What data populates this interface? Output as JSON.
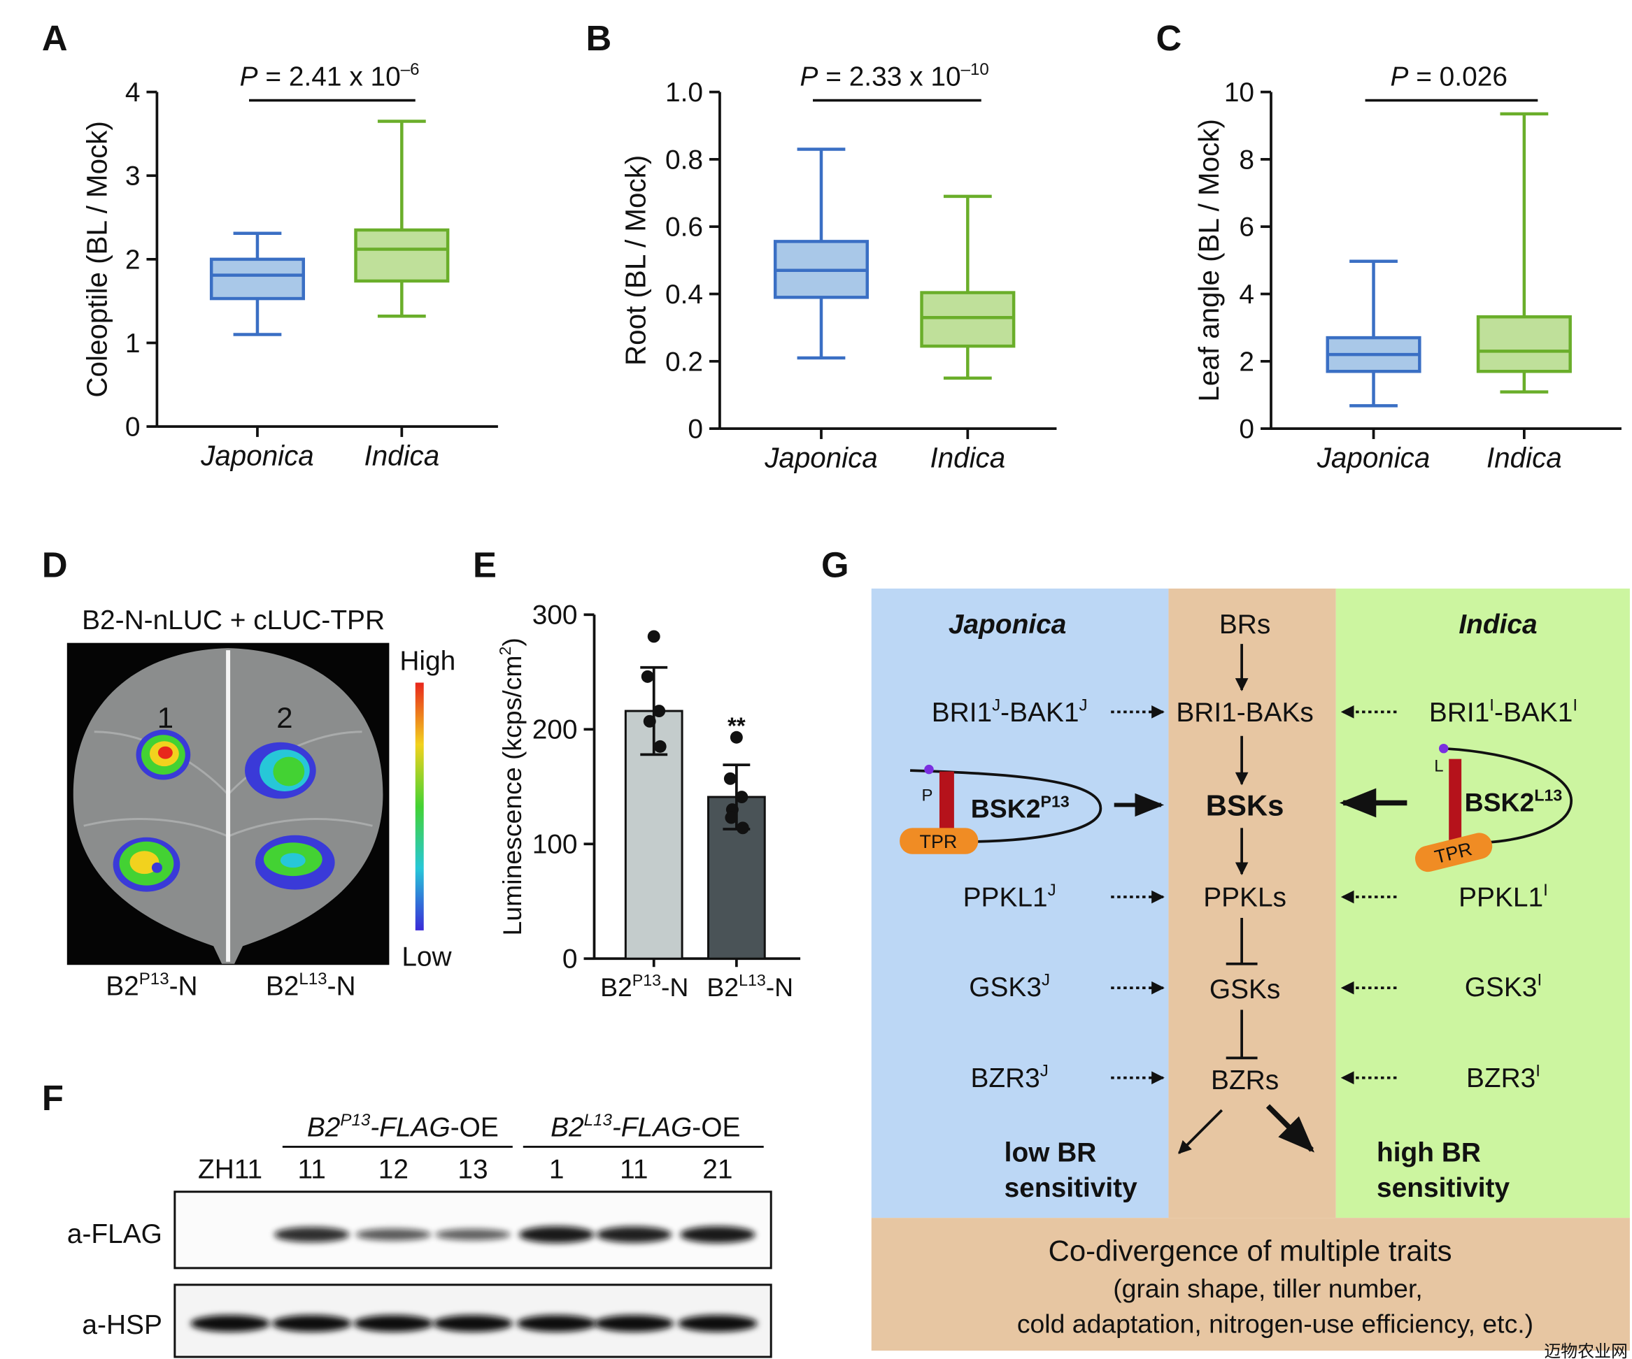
{
  "chart_data": [
    {
      "type": "box",
      "panel": "A",
      "ylabel": "Coleoptile (BL / Mock)",
      "annotation": [
        "P",
        " = 2.41 x 10",
        "–6"
      ],
      "categories": [
        "Japonica",
        "Indica"
      ],
      "colors": [
        "#3a6fc4",
        "#6aae2a"
      ],
      "fills": [
        "#a9c8e8",
        "#bfe09a"
      ],
      "boxes": [
        {
          "whislo": 1.1,
          "q1": 1.53,
          "med": 1.81,
          "q3": 2.0,
          "whishi": 2.31
        },
        {
          "whislo": 1.32,
          "q1": 1.74,
          "med": 2.12,
          "q3": 2.35,
          "whishi": 3.65
        }
      ],
      "ylim": [
        0,
        4
      ],
      "yticks": [
        0,
        1,
        2,
        3,
        4
      ]
    },
    {
      "type": "box",
      "panel": "B",
      "ylabel": "Root (BL / Mock)",
      "annotation": [
        "P",
        " = 2.33 x 10",
        "–10"
      ],
      "categories": [
        "Japonica",
        "Indica"
      ],
      "colors": [
        "#3a6fc4",
        "#6aae2a"
      ],
      "fills": [
        "#a9c8e8",
        "#bfe09a"
      ],
      "boxes": [
        {
          "whislo": 0.21,
          "q1": 0.39,
          "med": 0.47,
          "q3": 0.556,
          "whishi": 0.83
        },
        {
          "whislo": 0.15,
          "q1": 0.245,
          "med": 0.33,
          "q3": 0.404,
          "whishi": 0.69
        }
      ],
      "ylim": [
        0,
        1
      ],
      "yticks": [
        0,
        0.2,
        0.4,
        0.6,
        0.8,
        {
          "value": 1,
          "label": "1.0"
        }
      ]
    },
    {
      "type": "box",
      "panel": "C",
      "ylabel": "Leaf angle (BL / Mock)",
      "annotation": [
        "P",
        " = 0.026"
      ],
      "categories": [
        "Japonica",
        "Indica"
      ],
      "colors": [
        "#3a6fc4",
        "#6aae2a"
      ],
      "fills": [
        "#a9c8e8",
        "#bfe09a"
      ],
      "boxes": [
        {
          "whislo": 0.68,
          "q1": 1.7,
          "med": 2.2,
          "q3": 2.7,
          "whishi": 4.97
        },
        {
          "whislo": 1.09,
          "q1": 1.7,
          "med": 2.3,
          "q3": 3.32,
          "whishi": 9.35
        }
      ],
      "ylim": [
        0,
        10
      ],
      "yticks": [
        0,
        2,
        4,
        6,
        8,
        10
      ]
    },
    {
      "type": "bar",
      "panel": "E",
      "ylabel": [
        "Luminescence (kcps/cm",
        "2",
        ")"
      ],
      "categories": [
        [
          "B2",
          "P13",
          "-N"
        ],
        [
          "B2",
          "L13",
          "-N"
        ]
      ],
      "values": [
        216,
        141
      ],
      "errors": [
        38,
        28
      ],
      "points": [
        [
          281,
          246,
          216,
          207,
          185
        ],
        [
          193,
          157,
          141,
          130,
          114,
          123
        ]
      ],
      "significance": [
        null,
        "**"
      ],
      "colors": [
        "#c4cccc",
        "#4a5357"
      ],
      "ylim": [
        0,
        300
      ],
      "yticks": [
        0,
        100,
        200,
        300
      ]
    }
  ],
  "panel_d": {
    "panel": "D",
    "title": "B2-N-nLUC + cLUC-TPR",
    "scale_high": "High",
    "scale_low": "Low",
    "spot_labels": [
      "1",
      "2"
    ],
    "labels": [
      [
        "B2",
        "P13",
        "-N"
      ],
      [
        "B2",
        "L13",
        "-N"
      ]
    ]
  },
  "panel_f": {
    "panel": "F",
    "groups": [
      [
        "B2",
        "P13",
        "-FLAG",
        "-OE"
      ],
      [
        "B2",
        "L13",
        "-FLAG",
        "-OE"
      ]
    ],
    "lanes": [
      "ZH11",
      "11",
      "12",
      "13",
      "1",
      "11",
      "21"
    ],
    "rows": [
      "a-FLAG",
      "a-HSP"
    ]
  },
  "panel_g": {
    "panel": "G",
    "japonica": {
      "title": "Japonica",
      "items": [
        [
          "BRI1",
          "J",
          "-BAK1",
          "J"
        ],
        [
          "PPKL1",
          "J"
        ],
        [
          "GSK3",
          "J"
        ],
        [
          "BZR3",
          "J"
        ]
      ],
      "bsk": [
        "BSK2",
        "P13"
      ],
      "residue": "P",
      "tpr": "TPR",
      "outcome": [
        "low BR",
        "sensitivity"
      ]
    },
    "indica": {
      "title": "Indica",
      "items": [
        [
          "BRI1",
          "I",
          "-BAK1",
          "I"
        ],
        [
          "PPKL1",
          "I"
        ],
        [
          "GSK3",
          "I"
        ],
        [
          "BZR3",
          "I"
        ]
      ],
      "bsk": [
        "BSK2",
        "L13"
      ],
      "residue": "L",
      "tpr": "TPR",
      "outcome": [
        "high BR",
        "sensitivity"
      ]
    },
    "core": [
      "BRs",
      "BRI1-BAKs",
      "BSKs",
      "PPKLs",
      "GSKs",
      "BZRs"
    ],
    "footer": [
      "Co-divergence of multiple traits",
      "(grain shape, tiller number,",
      "cold adaptation, nitrogen-use efficiency, etc.)"
    ]
  },
  "watermark": "迈物农业网"
}
